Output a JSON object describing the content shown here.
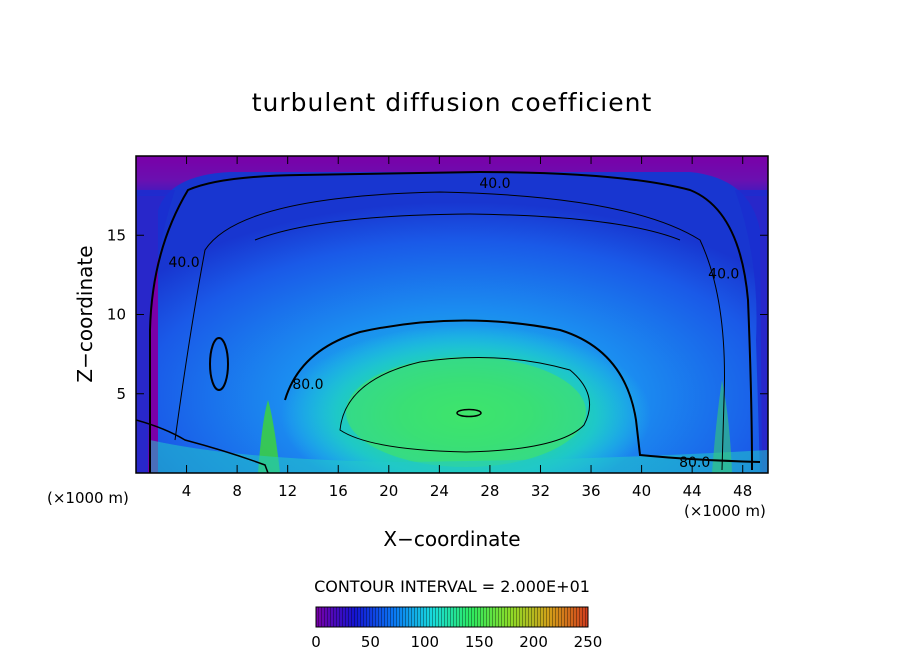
{
  "chart_data": {
    "type": "heatmap",
    "title": "turbulent diffusion coefficient",
    "xlabel": "X−coordinate",
    "ylabel": "Z−coordinate",
    "x_unit_left": "(×1000 m)",
    "x_unit_right": "(×1000 m)",
    "xlim": [
      0,
      50
    ],
    "ylim": [
      0,
      20
    ],
    "x_ticks": [
      4,
      8,
      12,
      16,
      20,
      24,
      28,
      32,
      36,
      40,
      44,
      48
    ],
    "y_ticks": [
      5,
      10,
      15
    ],
    "contour_interval_text": "CONTOUR INTERVAL = 2.000E+01",
    "contour_interval": 20,
    "contour_labels": [
      {
        "text": "40.0",
        "x": 28.4,
        "z": 18.3
      },
      {
        "text": "40.0",
        "x": 3.8,
        "z": 13.3
      },
      {
        "text": "40.0",
        "x": 46.5,
        "z": 12.6
      },
      {
        "text": "80.0",
        "x": 13.6,
        "z": 5.6
      },
      {
        "text": "80.0",
        "x": 44.2,
        "z": 0.7
      }
    ],
    "colorbar": {
      "min": 0,
      "max": 250,
      "ticks": [
        0,
        50,
        100,
        150,
        200,
        250
      ],
      "colors": [
        "#7a00a8",
        "#1414d2",
        "#0a78f5",
        "#18dcdc",
        "#2dea60",
        "#8cdc28",
        "#d2a019",
        "#d23c1e"
      ]
    },
    "field": {
      "background": "#7a00a8",
      "interior": "#1e5ff0",
      "mid": "#28a5f0",
      "core": "#3cdc6e",
      "core_peak": 130,
      "core_center": [
        26,
        3.8
      ]
    }
  }
}
